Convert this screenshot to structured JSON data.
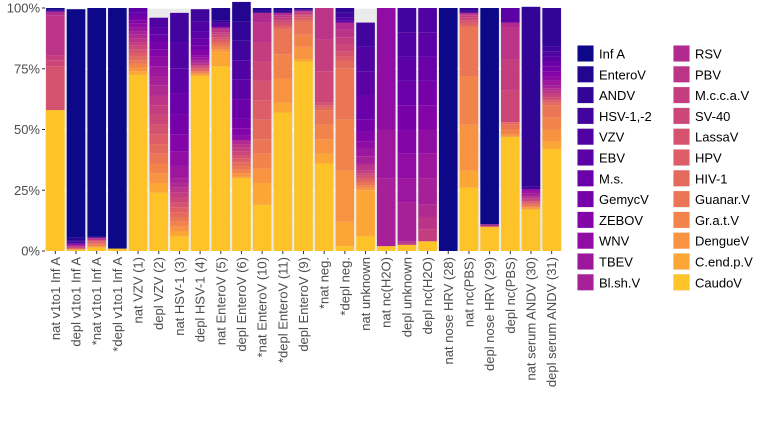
{
  "chart_data": {
    "type": "bar",
    "stacked": true,
    "title": "",
    "xlabel": "",
    "ylabel": "",
    "ylim": [
      0,
      100
    ],
    "y_ticks": [
      0,
      25,
      50,
      75,
      100
    ],
    "y_tick_labels": [
      "0%",
      "25%",
      "50%",
      "75%",
      "100%"
    ],
    "grid": true,
    "legend_position": "right",
    "categories": [
      "nat v1to1 Inf A",
      "depl v1to1 Inf A",
      "*nat v1to1 Inf A",
      "*depl v1to1 Inf A",
      "nat VZV (1)",
      "depl VZV (2)",
      "nat HSV-1 (3)",
      "depl HSV-1 (4)",
      "nat EnteroV (5)",
      "depl EnteroV (6)",
      "*nat EnteroV (10)",
      "*depl EnteroV (11)",
      "depl EnteroV (9)",
      "*nat neg.",
      "*depl neg.",
      "nat unknown",
      "nat nc(H2O)",
      "depl unknown",
      "depl nc(H2O)",
      "nat nose HRV (28)",
      "nat nc(PBS)",
      "depl nose HRV (29)",
      "depl nc(PBS)",
      "nat serum ANDV (30)",
      "depl serum ANDV (31)"
    ],
    "legend": [
      "Inf A",
      "EnteroV",
      "ANDV",
      "HSV-1,-2",
      "VZV",
      "EBV",
      "M.s.",
      "GemycV",
      "ZEBOV",
      "WNV",
      "TBEV",
      "Bl.sh.V",
      "RSV",
      "PBV",
      "M.c.c.a.V",
      "SV-40",
      "LassaV",
      "HPV",
      "HIV-1",
      "Guanar.V",
      "Gr.a.t.V",
      "DengueV",
      "C.end.p.V",
      "CaudoV"
    ],
    "colors": {
      "Inf A": "#0d0887",
      "EnteroV": "#220690",
      "ANDV": "#330597",
      "HSV-1,-2": "#41049d",
      "VZV": "#5002a2",
      "EBV": "#5c01a6",
      "M.s.": "#6a00a8",
      "GemycV": "#7701a8",
      "ZEBOV": "#8405a7",
      "WNV": "#900da4",
      "TBEV": "#9c179e",
      "Bl.sh.V": "#a62098",
      "RSV": "#b12a90",
      "PBV": "#bb3488",
      "M.c.c.a.V": "#c43e7f",
      "SV-40": "#cc4778",
      "LassaV": "#d5536f",
      "HPV": "#dd5e66",
      "HIV-1": "#e46a5d",
      "Guanar.V": "#eb7655",
      "Gr.a.t.V": "#f2844b",
      "DengueV": "#f89441",
      "C.end.p.V": "#fca636",
      "CaudoV": "#fdc328"
    },
    "series_values": [
      {
        "Inf A": 0.4,
        "EnteroV": 0.4,
        "ANDV": 0.4,
        "HSV-1,-2": 0.3,
        "RSV": 1.5,
        "PBV": 16.5,
        "M.c.c.a.V": 2.0,
        "SV-40": 2.5,
        "LassaV": 18.0,
        "CaudoV": 58.0
      },
      {
        "Inf A": 94.0,
        "EnteroV": 1.0,
        "ANDV": 0.5,
        "HSV-1,-2": 0.5,
        "VZV": 0.5,
        "ZEBOV": 0.5,
        "RSV": 0.5,
        "PBV": 0.5,
        "M.c.c.a.V": 0.5,
        "DengueV": 0.5,
        "CaudoV": 0.5
      },
      {
        "Inf A": 94.0,
        "EnteroV": 0.5,
        "RSV": 0.5,
        "PBV": 0.5,
        "LassaV": 0.5,
        "HPV": 0.5,
        "HIV-1": 0.5,
        "Guanar.V": 0.5,
        "Gr.a.t.V": 0.5,
        "DengueV": 0.5,
        "CaudoV": 1.5
      },
      {
        "Inf A": 99.0,
        "CaudoV": 1.0
      },
      {
        "EBV": 2.0,
        "M.s.": 1.5,
        "GemycV": 1.5,
        "ZEBOV": 1.5,
        "WNV": 1.5,
        "TBEV": 1.5,
        "Bl.sh.V": 1.5,
        "RSV": 1.5,
        "PBV": 1.5,
        "M.c.c.a.V": 1.5,
        "SV-40": 1.5,
        "LassaV": 1.5,
        "HPV": 1.5,
        "HIV-1": 1.5,
        "Guanar.V": 1.5,
        "Gr.a.t.V": 1.5,
        "DengueV": 1.5,
        "C.end.p.V": 1.5,
        "CaudoV": 72.5
      },
      {
        "VZV": 4.0,
        "EBV": 3.0,
        "M.s.": 3.0,
        "GemycV": 3.0,
        "ZEBOV": 3.0,
        "WNV": 4.0,
        "TBEV": 4.0,
        "Bl.sh.V": 4.0,
        "RSV": 4.0,
        "PBV": 4.0,
        "M.c.c.a.V": 4.0,
        "SV-40": 4.0,
        "LassaV": 4.0,
        "HPV": 4.0,
        "HIV-1": 4.0,
        "Guanar.V": 4.0,
        "Gr.a.t.V": 4.0,
        "DengueV": 4.0,
        "C.end.p.V": 4.0,
        "CaudoV": 24.0
      },
      {
        "HSV-1,-2": 12.0,
        "VZV": 11.0,
        "EBV": 10.0,
        "M.s.": 9.0,
        "GemycV": 8.0,
        "ZEBOV": 7.0,
        "WNV": 6.0,
        "TBEV": 5.0,
        "Bl.sh.V": 2.0,
        "RSV": 2.0,
        "PBV": 2.0,
        "M.c.c.a.V": 2.0,
        "SV-40": 2.0,
        "LassaV": 2.0,
        "HPV": 2.0,
        "HIV-1": 2.0,
        "Guanar.V": 2.0,
        "Gr.a.t.V": 2.0,
        "DengueV": 2.0,
        "C.end.p.V": 2.0,
        "CaudoV": 6.0
      },
      {
        "HSV-1,-2": 5.0,
        "VZV": 4.0,
        "EBV": 3.0,
        "M.s.": 3.0,
        "GemycV": 2.0,
        "ZEBOV": 2.0,
        "WNV": 1.0,
        "TBEV": 1.0,
        "Bl.sh.V": 1.0,
        "RSV": 0.5,
        "PBV": 0.5,
        "M.c.c.a.V": 0.5,
        "SV-40": 0.5,
        "LassaV": 0.5,
        "HPV": 0.5,
        "HIV-1": 0.5,
        "Guanar.V": 0.5,
        "Gr.a.t.V": 0.5,
        "DengueV": 0.5,
        "C.end.p.V": 0.5,
        "CaudoV": 72.0
      },
      {
        "EnteroV": 5.0,
        "ANDV": 1.0,
        "VZV": 1.0,
        "EBV": 1.0,
        "RSV": 1.0,
        "PBV": 1.0,
        "M.c.c.a.V": 1.0,
        "SV-40": 1.0,
        "LassaV": 1.0,
        "HPV": 1.0,
        "HIV-1": 1.0,
        "Guanar.V": 1.0,
        "Gr.a.t.V": 1.0,
        "DengueV": 1.0,
        "C.end.p.V": 6.0,
        "CaudoV": 76.0
      },
      {
        "EnteroV": 8.0,
        "ANDV": 8.0,
        "HSV-1,-2": 8.0,
        "VZV": 8.0,
        "EBV": 8.0,
        "M.s.": 8.0,
        "GemycV": 4.0,
        "ZEBOV": 3.0,
        "WNV": 2.0,
        "RSV": 1.5,
        "PBV": 1.5,
        "M.c.c.a.V": 1.5,
        "SV-40": 1.5,
        "LassaV": 1.5,
        "HPV": 1.5,
        "HIV-1": 1.5,
        "Guanar.V": 1.5,
        "Gr.a.t.V": 1.5,
        "DengueV": 1.5,
        "C.end.p.V": 0.5,
        "CaudoV": 30.0
      },
      {
        "EnteroV": 1.0,
        "ANDV": 1.0,
        "RSV": 4.0,
        "PBV": 8.0,
        "M.c.c.a.V": 8.0,
        "SV-40": 8.0,
        "LassaV": 8.0,
        "HPV": 8.0,
        "HIV-1": 8.0,
        "Guanar.V": 6.0,
        "Gr.a.t.V": 6.0,
        "DengueV": 6.0,
        "C.end.p.V": 9.0,
        "CaudoV": 19.0
      },
      {
        "EnteroV": 1.0,
        "ANDV": 1.0,
        "RSV": 1.0,
        "PBV": 1.0,
        "M.c.c.a.V": 1.0,
        "SV-40": 1.0,
        "LassaV": 1.0,
        "HPV": 1.0,
        "HIV-1": 1.0,
        "Guanar.V": 10.0,
        "Gr.a.t.V": 10.0,
        "DengueV": 10.0,
        "C.end.p.V": 4.0,
        "CaudoV": 57.0
      },
      {
        "EnteroV": 0.5,
        "ANDV": 0.5,
        "RSV": 0.5,
        "PBV": 0.5,
        "M.c.c.a.V": 0.5,
        "SV-40": 0.5,
        "LassaV": 1.0,
        "HPV": 1.0,
        "HIV-1": 1.0,
        "Guanar.V": 5.0,
        "Gr.a.t.V": 5.0,
        "DengueV": 5.0,
        "C.end.p.V": 1.0,
        "CaudoV": 78.0
      },
      {
        "PBV": 13.0,
        "M.c.c.a.V": 13.0,
        "SV-40": 13.0,
        "LassaV": 1.0,
        "HPV": 1.0,
        "HIV-1": 1.0,
        "Guanar.V": 6.0,
        "Gr.a.t.V": 6.0,
        "DengueV": 6.0,
        "C.end.p.V": 4.0,
        "CaudoV": 36.0
      },
      {
        "ANDV": 2.0,
        "HSV-1,-2": 2.0,
        "VZV": 1.0,
        "EBV": 1.0,
        "RSV": 3.0,
        "PBV": 3.0,
        "M.c.c.a.V": 3.0,
        "SV-40": 3.0,
        "LassaV": 2.0,
        "HPV": 2.0,
        "HIV-1": 3.0,
        "Guanar.V": 21.0,
        "Gr.a.t.V": 21.0,
        "DengueV": 21.0,
        "C.end.p.V": 10.0,
        "CaudoV": 2.0
      },
      {
        "HSV-1,-2": 10.0,
        "VZV": 10.0,
        "EBV": 10.0,
        "M.s.": 10.0,
        "GemycV": 5.0,
        "ZEBOV": 4.0,
        "WNV": 3.0,
        "TBEV": 3.0,
        "Bl.sh.V": 3.0,
        "RSV": 1.0,
        "PBV": 2.0,
        "M.c.c.a.V": 1.0,
        "SV-40": 1.0,
        "LassaV": 1.0,
        "HPV": 1.0,
        "HIV-1": 1.0,
        "Guanar.V": 1.0,
        "Gr.a.t.V": 1.0,
        "DengueV": 1.0,
        "C.end.p.V": 19.0,
        "CaudoV": 6.0
      },
      {
        "WNV": 50.0,
        "TBEV": 20.0,
        "Bl.sh.V": 28.0,
        "CaudoV": 2.0
      },
      {
        "HSV-1,-2": 10.0,
        "VZV": 10.0,
        "EBV": 10.0,
        "M.s.": 10.0,
        "GemycV": 10.0,
        "ZEBOV": 10.0,
        "WNV": 10.0,
        "TBEV": 10.0,
        "Bl.sh.V": 16.0,
        "RSV": 0.5,
        "PBV": 0.5,
        "M.c.c.a.V": 0.5,
        "CaudoV": 2.5
      },
      {
        "VZV": 10.0,
        "EBV": 10.0,
        "M.s.": 10.0,
        "GemycV": 10.0,
        "ZEBOV": 10.0,
        "WNV": 10.0,
        "TBEV": 10.0,
        "Bl.sh.V": 11.0,
        "RSV": 5.0,
        "PBV": 5.0,
        "M.c.c.a.V": 5.0,
        "CaudoV": 4.0
      },
      {
        "Inf A": 100.0
      },
      {
        "ANDV": 1.0,
        "HSV-1,-2": 1.0,
        "RSV": 0.5,
        "PBV": 0.5,
        "M.c.c.a.V": 1.0,
        "SV-40": 1.0,
        "LassaV": 1.0,
        "HPV": 1.0,
        "HIV-1": 1.0,
        "Guanar.V": 20.0,
        "Gr.a.t.V": 20.0,
        "DengueV": 19.0,
        "C.end.p.V": 7.0,
        "CaudoV": 26.0
      },
      {
        "Inf A": 89.0,
        "RSV": 0.5,
        "PBV": 0.5,
        "CaudoV": 10.0
      },
      {
        "EBV": 6.0,
        "RSV": 2.0,
        "PBV": 13.0,
        "M.c.c.a.V": 13.0,
        "SV-40": 13.0,
        "HIV-1": 1.0,
        "Guanar.V": 2.0,
        "Gr.a.t.V": 2.0,
        "DengueV": 1.0,
        "CaudoV": 47.0
      },
      {
        "ANDV": 74.0,
        "HSV-1,-2": 1.0,
        "WNV": 1.0,
        "TBEV": 1.0,
        "Bl.sh.V": 1.0,
        "RSV": 0.5,
        "PBV": 0.5,
        "M.c.c.a.V": 0.5,
        "SV-40": 0.5,
        "LassaV": 0.5,
        "HPV": 0.5,
        "HIV-1": 0.5,
        "Guanar.V": 0.5,
        "Gr.a.t.V": 0.5,
        "DengueV": 0.5,
        "C.end.p.V": 0.5,
        "CaudoV": 17.0
      },
      {
        "ANDV": 16.0,
        "HSV-1,-2": 2.0,
        "VZV": 2.0,
        "EBV": 2.0,
        "M.s.": 2.0,
        "GemycV": 2.0,
        "ZEBOV": 2.0,
        "WNV": 2.0,
        "TBEV": 2.0,
        "Bl.sh.V": 1.0,
        "RSV": 1.0,
        "PBV": 1.0,
        "M.c.c.a.V": 1.0,
        "SV-40": 1.0,
        "LassaV": 1.0,
        "HPV": 1.0,
        "HIV-1": 1.0,
        "Guanar.V": 5.0,
        "Gr.a.t.V": 5.0,
        "DengueV": 5.0,
        "C.end.p.V": 3.0,
        "CaudoV": 42.0
      }
    ]
  }
}
